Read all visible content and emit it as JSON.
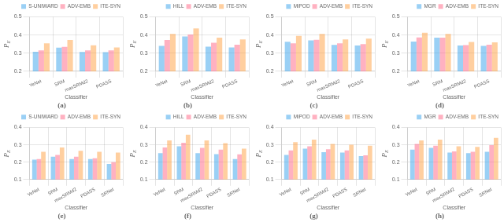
{
  "chart_data": [
    {
      "type": "bar",
      "title": "(a)",
      "xlabel": "Classifier",
      "ylabel": "P_E",
      "categories": [
        "YeNet",
        "SRM",
        "maxSRMd2",
        "PDASS"
      ],
      "series": [
        {
          "name": "S-UNIWARD",
          "values": [
            0.308,
            0.33,
            0.307,
            0.306
          ]
        },
        {
          "name": "ADV-EMB",
          "values": [
            0.315,
            0.335,
            0.315,
            0.315
          ]
        },
        {
          "name": "ITE-SYN",
          "values": [
            0.354,
            0.373,
            0.343,
            0.332
          ]
        }
      ],
      "ylim": [
        0.2,
        0.5
      ],
      "yticks": [
        0.2,
        0.3,
        0.4,
        0.5
      ],
      "grid": true,
      "legend": "upper right"
    },
    {
      "type": "bar",
      "title": "(b)",
      "xlabel": "Classifier",
      "ylabel": "P_E",
      "categories": [
        "YeNet",
        "SRM",
        "maxSRMd2",
        "PDASS"
      ],
      "series": [
        {
          "name": "HILL",
          "values": [
            0.34,
            0.392,
            0.336,
            0.332
          ]
        },
        {
          "name": "ADV-EMB",
          "values": [
            0.373,
            0.403,
            0.357,
            0.347
          ]
        },
        {
          "name": "ITE-SYN",
          "values": [
            0.406,
            0.436,
            0.385,
            0.376
          ]
        }
      ],
      "ylim": [
        0.2,
        0.5
      ],
      "yticks": [
        0.2,
        0.3,
        0.4,
        0.5
      ],
      "grid": true,
      "legend": "upper right"
    },
    {
      "type": "bar",
      "title": "(c)",
      "xlabel": "Classifier",
      "ylabel": "P_E",
      "categories": [
        "YeNet",
        "SRM",
        "maxSRMd2",
        "PDASS"
      ],
      "series": [
        {
          "name": "MiPOD",
          "values": [
            0.363,
            0.37,
            0.346,
            0.342
          ]
        },
        {
          "name": "ADV-EMB",
          "values": [
            0.354,
            0.374,
            0.354,
            0.35
          ]
        },
        {
          "name": "ITE-SYN",
          "values": [
            0.395,
            0.406,
            0.376,
            0.38
          ]
        }
      ],
      "ylim": [
        0.2,
        0.5
      ],
      "yticks": [
        0.2,
        0.3,
        0.4,
        0.5
      ],
      "grid": true,
      "legend": "upper right"
    },
    {
      "type": "bar",
      "title": "(d)",
      "xlabel": "Classifier",
      "ylabel": "P_E",
      "categories": [
        "YeNet",
        "SRM",
        "maxSRMd2",
        "PDASS"
      ],
      "series": [
        {
          "name": "MGR",
          "values": [
            0.364,
            0.385,
            0.342,
            0.34
          ]
        },
        {
          "name": "ADV-EMB",
          "values": [
            0.387,
            0.385,
            0.345,
            0.347
          ]
        },
        {
          "name": "ITE-SYN",
          "values": [
            0.413,
            0.406,
            0.362,
            0.36
          ]
        }
      ],
      "ylim": [
        0.2,
        0.5
      ],
      "yticks": [
        0.2,
        0.3,
        0.4,
        0.5
      ],
      "grid": true,
      "legend": "upper right"
    },
    {
      "type": "bar",
      "title": "(e)",
      "xlabel": "Classifier",
      "ylabel": "P_E",
      "categories": [
        "YeNet",
        "SRM",
        "maxSRMd2",
        "PDASS",
        "SRNet"
      ],
      "series": [
        {
          "name": "S-UNIWARD",
          "values": [
            0.215,
            0.232,
            0.218,
            0.218,
            0.19
          ]
        },
        {
          "name": "ADV-EMB",
          "values": [
            0.218,
            0.242,
            0.232,
            0.222,
            0.2
          ]
        },
        {
          "name": "ITE-SYN",
          "values": [
            0.26,
            0.285,
            0.265,
            0.26,
            0.255
          ]
        }
      ],
      "ylim": [
        0.1,
        0.4
      ],
      "yticks": [
        0.1,
        0.2,
        0.3,
        0.4
      ],
      "grid": true,
      "legend": "upper right"
    },
    {
      "type": "bar",
      "title": "(f)",
      "xlabel": "Classifier",
      "ylabel": "P_E",
      "categories": [
        "YeNet",
        "SRM",
        "maxSRMd2",
        "PDASS",
        "SRNet"
      ],
      "series": [
        {
          "name": "HILL",
          "values": [
            0.252,
            0.292,
            0.252,
            0.246,
            0.218
          ]
        },
        {
          "name": "ADV-EMB",
          "values": [
            0.285,
            0.312,
            0.282,
            0.272,
            0.245
          ]
        },
        {
          "name": "ITE-SYN",
          "values": [
            0.325,
            0.358,
            0.325,
            0.31,
            0.278
          ]
        }
      ],
      "ylim": [
        0.1,
        0.4
      ],
      "yticks": [
        0.1,
        0.2,
        0.3,
        0.4
      ],
      "grid": true,
      "legend": "upper right"
    },
    {
      "type": "bar",
      "title": "(g)",
      "xlabel": "Classifier",
      "ylabel": "P_E",
      "categories": [
        "YeNet",
        "SRM",
        "maxSRMd2",
        "PDASS",
        "SRNet"
      ],
      "series": [
        {
          "name": "MiPOD",
          "values": [
            0.242,
            0.278,
            0.258,
            0.255,
            0.235
          ]
        },
        {
          "name": "ADV-EMB",
          "values": [
            0.268,
            0.292,
            0.275,
            0.268,
            0.24
          ]
        },
        {
          "name": "ITE-SYN",
          "values": [
            0.315,
            0.33,
            0.305,
            0.3,
            0.295
          ]
        }
      ],
      "ylim": [
        0.1,
        0.4
      ],
      "yticks": [
        0.1,
        0.2,
        0.3,
        0.4
      ],
      "grid": true,
      "legend": "upper right"
    },
    {
      "type": "bar",
      "title": "(h)",
      "xlabel": "Classifier",
      "ylabel": "P_E",
      "categories": [
        "YeNet",
        "SRM",
        "maxSRMd2",
        "PDASS",
        "SRNet"
      ],
      "series": [
        {
          "name": "MGR",
          "values": [
            0.272,
            0.282,
            0.255,
            0.252,
            0.26
          ]
        },
        {
          "name": "ADV-EMB",
          "values": [
            0.305,
            0.295,
            0.262,
            0.26,
            0.298
          ]
        },
        {
          "name": "ITE-SYN",
          "values": [
            0.325,
            0.33,
            0.292,
            0.288,
            0.34
          ]
        }
      ],
      "ylim": [
        0.1,
        0.4
      ],
      "yticks": [
        0.1,
        0.2,
        0.3,
        0.4
      ],
      "grid": true,
      "legend": "upper right"
    }
  ]
}
